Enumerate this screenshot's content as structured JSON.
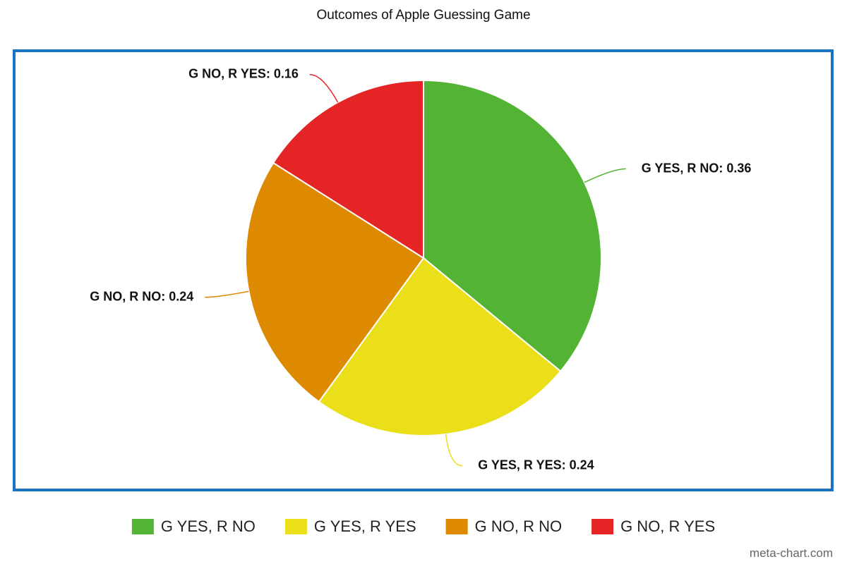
{
  "chart_data": {
    "type": "pie",
    "title": "Outcomes of Apple Guessing Game",
    "categories": [
      "G YES, R NO",
      "G YES, R YES",
      "G NO, R NO",
      "G NO, R YES"
    ],
    "values": [
      0.36,
      0.24,
      0.24,
      0.16
    ],
    "value_labels": [
      "G YES, R NO: 0.36",
      "G YES, R YES: 0.24",
      "G NO, R NO: 0.24",
      "G NO, R YES: 0.16"
    ],
    "colors": [
      "#52b334",
      "#ebdf1a",
      "#dd8a00",
      "#e52525"
    ],
    "legend": "bottom"
  },
  "watermark": "meta-chart.com"
}
